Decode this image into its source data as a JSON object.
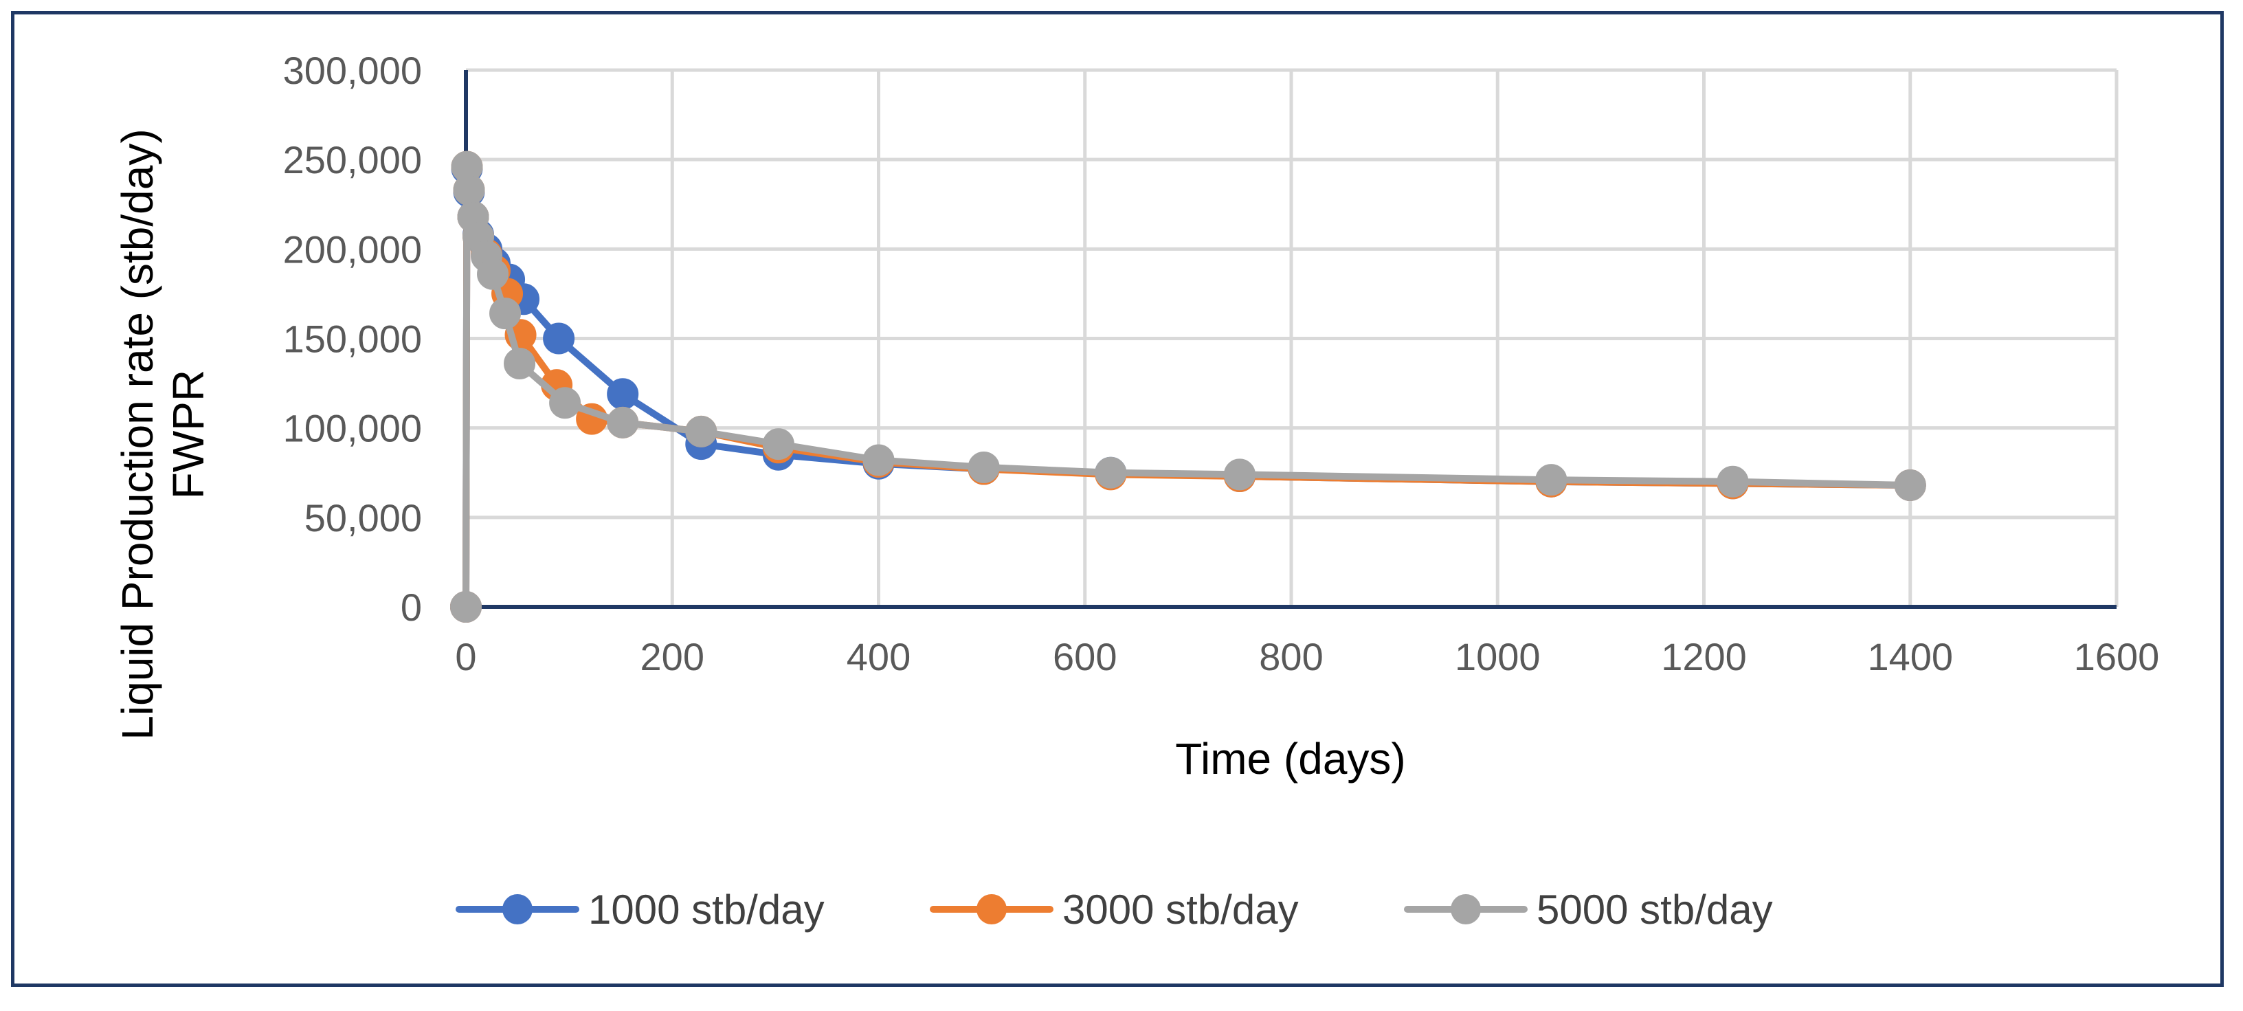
{
  "chart_data": {
    "type": "line",
    "xlabel": "Time (days)",
    "ylabel_lines": [
      "Liquid Production rate (stb/day)",
      "FWPR"
    ],
    "xlim": [
      0,
      1600
    ],
    "ylim": [
      0,
      300000
    ],
    "x_ticks": [
      0,
      200,
      400,
      600,
      800,
      1000,
      1200,
      1400,
      1600
    ],
    "y_ticks": [
      0,
      50000,
      100000,
      150000,
      200000,
      250000,
      300000
    ],
    "x_tick_labels": [
      "0",
      "200",
      "400",
      "600",
      "800",
      "1000",
      "1200",
      "1400",
      "1600"
    ],
    "y_tick_labels": [
      "0",
      "50,000",
      "100,000",
      "150,000",
      "200,000",
      "250,000",
      "300,000"
    ],
    "grid": true,
    "legend_position": "bottom",
    "series": [
      {
        "name": "1000 stb/day",
        "color": "#4472C4",
        "points": [
          [
            0,
            0
          ],
          [
            1,
            245000
          ],
          [
            3,
            232000
          ],
          [
            7,
            218000
          ],
          [
            12,
            208000
          ],
          [
            20,
            200000
          ],
          [
            28,
            192000
          ],
          [
            42,
            183000
          ],
          [
            56,
            172000
          ],
          [
            90,
            150000
          ],
          [
            152,
            119000
          ],
          [
            228,
            91000
          ],
          [
            303,
            85000
          ],
          [
            400,
            80000
          ],
          [
            502,
            77000
          ],
          [
            625,
            75000
          ],
          [
            750,
            73000
          ],
          [
            1052,
            70000
          ],
          [
            1228,
            69000
          ],
          [
            1400,
            68000
          ]
        ]
      },
      {
        "name": "3000 stb/day",
        "color": "#ED7D31",
        "points": [
          [
            0,
            0
          ],
          [
            1,
            246000
          ],
          [
            3,
            233000
          ],
          [
            7,
            218000
          ],
          [
            12,
            207000
          ],
          [
            20,
            197000
          ],
          [
            28,
            188000
          ],
          [
            40,
            175000
          ],
          [
            53,
            152000
          ],
          [
            88,
            124000
          ],
          [
            122,
            105000
          ],
          [
            152,
            103000
          ],
          [
            228,
            98000
          ],
          [
            303,
            89000
          ],
          [
            400,
            81000
          ],
          [
            502,
            77000
          ],
          [
            625,
            74000
          ],
          [
            750,
            73000
          ],
          [
            1052,
            70000
          ],
          [
            1228,
            69000
          ],
          [
            1400,
            68000
          ]
        ]
      },
      {
        "name": "5000 stb/day",
        "color": "#A5A5A5",
        "points": [
          [
            0,
            0
          ],
          [
            1,
            246000
          ],
          [
            3,
            233000
          ],
          [
            7,
            218000
          ],
          [
            12,
            207000
          ],
          [
            20,
            196000
          ],
          [
            26,
            186000
          ],
          [
            38,
            164000
          ],
          [
            52,
            136000
          ],
          [
            96,
            114000
          ],
          [
            152,
            103000
          ],
          [
            228,
            98000
          ],
          [
            303,
            91000
          ],
          [
            400,
            82000
          ],
          [
            502,
            78000
          ],
          [
            625,
            75000
          ],
          [
            750,
            74000
          ],
          [
            1052,
            71000
          ],
          [
            1228,
            70000
          ],
          [
            1400,
            68000
          ]
        ]
      }
    ]
  }
}
